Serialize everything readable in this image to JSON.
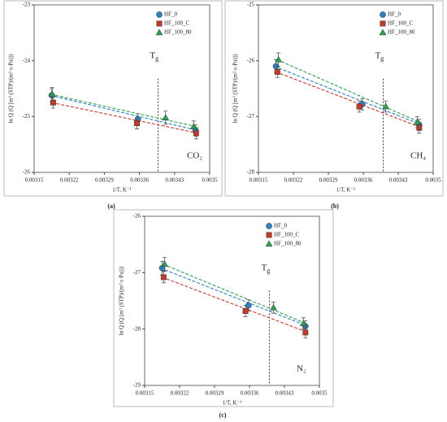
{
  "chart_data": [
    {
      "type": "scatter",
      "panel": "(a)",
      "xlabel": "1/T, K⁻¹",
      "ylabel": "ln Q (Q [m³ (STP)/(m²·s·Pa)])",
      "xlim": [
        0.00315,
        0.0035
      ],
      "xticks": [
        0.00315,
        0.00322,
        0.00329,
        0.00336,
        0.00343,
        0.0035
      ],
      "ylim": [
        -26,
        -23
      ],
      "yticks": [
        -26,
        -25,
        -24,
        -23
      ],
      "legend": "upper right",
      "tg_label": "T",
      "tg_sub": "g",
      "tg_x": 0.003397,
      "gas": "CO₂",
      "series": [
        {
          "name": "HF_0",
          "color": "#2f7fc1",
          "marker": "circle",
          "x": [
            0.003185,
            0.003357,
            0.003472
          ],
          "values": [
            -24.62,
            -25.05,
            -25.25
          ],
          "errors": [
            0.12,
            0.1,
            0.1
          ]
        },
        {
          "name": "HF_100_C",
          "color": "#c0392b",
          "marker": "square",
          "x": [
            0.003188,
            0.003355,
            0.003473
          ],
          "values": [
            -24.75,
            -25.12,
            -25.3
          ],
          "errors": [
            0.1,
            0.1,
            0.1
          ]
        },
        {
          "name": "HF_100_80",
          "color": "#2e9e55",
          "marker": "triangle",
          "x": [
            0.003186,
            0.003412,
            0.003468
          ],
          "values": [
            -24.6,
            -25.02,
            -25.18
          ],
          "errors": [
            0.12,
            0.12,
            0.1
          ]
        }
      ]
    },
    {
      "type": "scatter",
      "panel": "(b)",
      "xlabel": "1/T, K⁻¹",
      "ylabel": "ln Q (Q [m³ (STP)/(m²·s·Pa)])",
      "xlim": [
        0.00315,
        0.0035
      ],
      "xticks": [
        0.00315,
        0.00322,
        0.00329,
        0.00336,
        0.00343,
        0.0035
      ],
      "ylim": [
        -28,
        -25
      ],
      "yticks": [
        -28,
        -27,
        -26,
        -25
      ],
      "legend": "upper right",
      "tg_label": "T",
      "tg_sub": "g",
      "tg_x": 0.0034,
      "gas": "CH₄",
      "series": [
        {
          "name": "HF_0",
          "color": "#2f7fc1",
          "marker": "circle",
          "x": [
            0.003185,
            0.003358,
            0.003472
          ],
          "values": [
            -26.1,
            -26.78,
            -27.15
          ],
          "errors": [
            0.12,
            0.1,
            0.1
          ]
        },
        {
          "name": "HF_100_C",
          "color": "#c0392b",
          "marker": "square",
          "x": [
            0.003188,
            0.003352,
            0.003472
          ],
          "values": [
            -26.2,
            -26.82,
            -27.2
          ],
          "errors": [
            0.1,
            0.1,
            0.1
          ]
        },
        {
          "name": "HF_100_80",
          "color": "#2e9e55",
          "marker": "triangle",
          "x": [
            0.00319,
            0.003405,
            0.003468
          ],
          "values": [
            -25.98,
            -26.82,
            -27.1
          ],
          "errors": [
            0.12,
            0.1,
            0.1
          ]
        }
      ]
    },
    {
      "type": "scatter",
      "panel": "(c)",
      "xlabel": "1/T, K⁻¹",
      "ylabel": "ln Q (Q [m³ (STP)/(m²·s·Pa)])",
      "xlim": [
        0.00315,
        0.0035
      ],
      "xticks": [
        0.00315,
        0.00322,
        0.00329,
        0.00336,
        0.00343,
        0.0035
      ],
      "ylim": [
        -29,
        -26
      ],
      "yticks": [
        -29,
        -28,
        -27,
        -26
      ],
      "legend": "upper right",
      "tg_label": "T",
      "tg_sub": "g",
      "tg_x": 0.0034,
      "gas": "N₂",
      "series": [
        {
          "name": "HF_0",
          "color": "#2f7fc1",
          "marker": "circle",
          "x": [
            0.003185,
            0.003358,
            0.003472
          ],
          "values": [
            -26.92,
            -27.58,
            -27.95
          ],
          "errors": [
            0.12,
            0.1,
            0.1
          ]
        },
        {
          "name": "HF_100_C",
          "color": "#c0392b",
          "marker": "square",
          "x": [
            0.003188,
            0.003352,
            0.003472
          ],
          "values": [
            -27.08,
            -27.68,
            -28.06
          ],
          "errors": [
            0.1,
            0.1,
            0.1
          ]
        },
        {
          "name": "HF_100_80",
          "color": "#2e9e55",
          "marker": "triangle",
          "x": [
            0.00319,
            0.003408,
            0.003468
          ],
          "values": [
            -26.85,
            -27.62,
            -27.9
          ],
          "errors": [
            0.12,
            0.1,
            0.1
          ]
        }
      ]
    }
  ]
}
